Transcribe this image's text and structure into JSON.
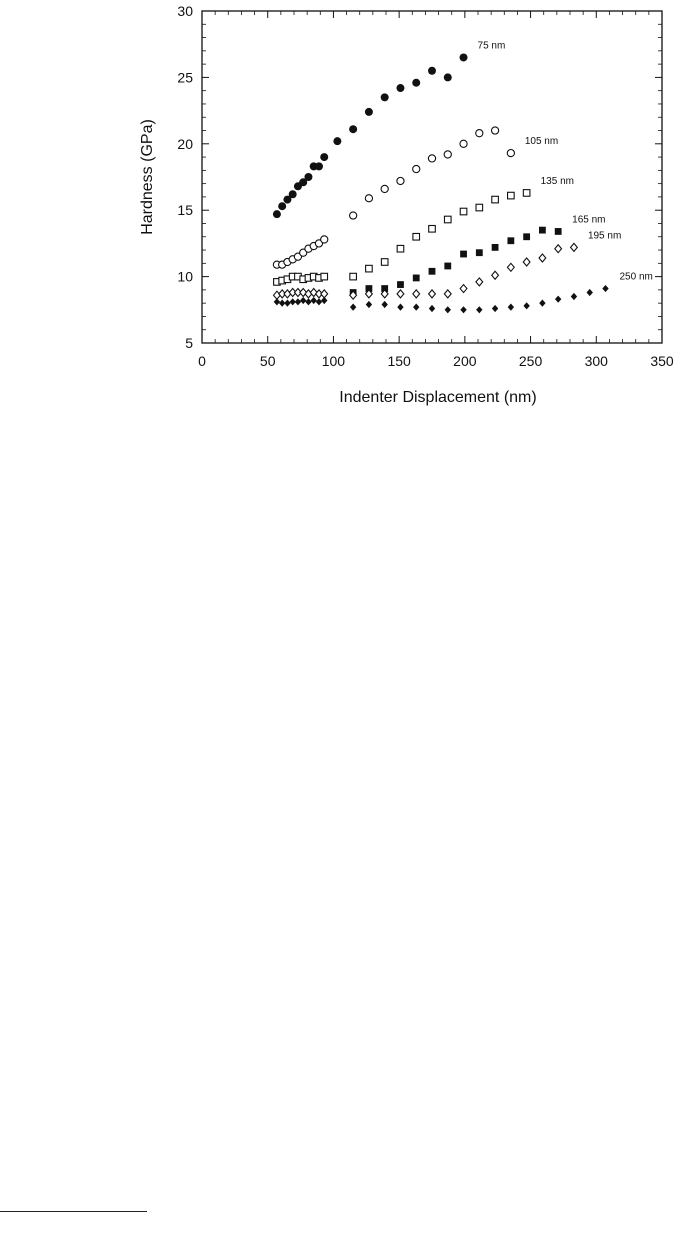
{
  "chart_data": {
    "type": "scatter",
    "title": "",
    "xlabel": "Indenter Displacement (nm)",
    "ylabel": "Hardness (GPa)",
    "xlim": [
      0,
      350
    ],
    "ylim": [
      5,
      30
    ],
    "x_ticks": [
      "0",
      "50",
      "100",
      "150",
      "200",
      "250",
      "300",
      "350"
    ],
    "y_ticks": [
      "5",
      "10",
      "15",
      "20",
      "25",
      "30"
    ],
    "grid": false,
    "legend": "inline labels at right end of each series",
    "series": [
      {
        "name": "75 nm",
        "marker": "filled-circle",
        "points": [
          [
            57,
            14.7
          ],
          [
            61,
            15.3
          ],
          [
            65,
            15.8
          ],
          [
            69,
            16.2
          ],
          [
            73,
            16.8
          ],
          [
            77,
            17.1
          ],
          [
            81,
            17.5
          ],
          [
            85,
            18.3
          ],
          [
            89,
            18.3
          ],
          [
            93,
            19.0
          ],
          [
            103,
            20.2
          ],
          [
            115,
            21.1
          ],
          [
            127,
            22.4
          ],
          [
            139,
            23.5
          ],
          [
            151,
            24.2
          ],
          [
            163,
            24.6
          ],
          [
            175,
            25.5
          ],
          [
            187,
            25.0
          ],
          [
            199,
            26.5
          ]
        ]
      },
      {
        "name": "105 nm",
        "marker": "open-circle",
        "points": [
          [
            57,
            10.9
          ],
          [
            61,
            10.9
          ],
          [
            65,
            11.1
          ],
          [
            69,
            11.3
          ],
          [
            73,
            11.5
          ],
          [
            77,
            11.8
          ],
          [
            81,
            12.1
          ],
          [
            85,
            12.3
          ],
          [
            89,
            12.5
          ],
          [
            93,
            12.8
          ],
          [
            115,
            14.6
          ],
          [
            127,
            15.9
          ],
          [
            139,
            16.6
          ],
          [
            151,
            17.2
          ],
          [
            163,
            18.1
          ],
          [
            175,
            18.9
          ],
          [
            187,
            19.2
          ],
          [
            199,
            20.0
          ],
          [
            211,
            20.8
          ],
          [
            223,
            21.0
          ],
          [
            235,
            19.3
          ]
        ]
      },
      {
        "name": "135 nm",
        "marker": "open-square",
        "points": [
          [
            57,
            9.6
          ],
          [
            61,
            9.7
          ],
          [
            65,
            9.8
          ],
          [
            69,
            10.0
          ],
          [
            73,
            10.0
          ],
          [
            77,
            9.8
          ],
          [
            81,
            9.9
          ],
          [
            85,
            10.0
          ],
          [
            89,
            9.9
          ],
          [
            93,
            10.0
          ],
          [
            115,
            10.0
          ],
          [
            127,
            10.6
          ],
          [
            139,
            11.1
          ],
          [
            151,
            12.1
          ],
          [
            163,
            13.0
          ],
          [
            175,
            13.6
          ],
          [
            187,
            14.3
          ],
          [
            199,
            14.9
          ],
          [
            211,
            15.2
          ],
          [
            223,
            15.8
          ],
          [
            235,
            16.1
          ],
          [
            247,
            16.3
          ]
        ]
      },
      {
        "name": "165 nm",
        "marker": "filled-square",
        "points": [
          [
            115,
            8.8
          ],
          [
            127,
            9.1
          ],
          [
            139,
            9.1
          ],
          [
            151,
            9.4
          ],
          [
            163,
            9.9
          ],
          [
            175,
            10.4
          ],
          [
            187,
            10.8
          ],
          [
            199,
            11.7
          ],
          [
            211,
            11.8
          ],
          [
            223,
            12.2
          ],
          [
            235,
            12.7
          ],
          [
            247,
            13.0
          ],
          [
            259,
            13.5
          ],
          [
            271,
            13.4
          ]
        ]
      },
      {
        "name": "195 nm",
        "marker": "open-diamond",
        "points": [
          [
            57,
            8.6
          ],
          [
            61,
            8.7
          ],
          [
            65,
            8.7
          ],
          [
            69,
            8.8
          ],
          [
            73,
            8.8
          ],
          [
            77,
            8.8
          ],
          [
            81,
            8.7
          ],
          [
            85,
            8.8
          ],
          [
            89,
            8.7
          ],
          [
            93,
            8.7
          ],
          [
            115,
            8.6
          ],
          [
            127,
            8.7
          ],
          [
            139,
            8.7
          ],
          [
            151,
            8.7
          ],
          [
            163,
            8.7
          ],
          [
            175,
            8.7
          ],
          [
            187,
            8.7
          ],
          [
            199,
            9.1
          ],
          [
            211,
            9.6
          ],
          [
            223,
            10.1
          ],
          [
            235,
            10.7
          ],
          [
            247,
            11.1
          ],
          [
            259,
            11.4
          ],
          [
            271,
            12.1
          ],
          [
            283,
            12.2
          ]
        ]
      },
      {
        "name": "250 nm",
        "marker": "filled-diamond",
        "points": [
          [
            57,
            8.1
          ],
          [
            61,
            8.0
          ],
          [
            65,
            8.0
          ],
          [
            69,
            8.1
          ],
          [
            73,
            8.1
          ],
          [
            77,
            8.2
          ],
          [
            81,
            8.1
          ],
          [
            85,
            8.2
          ],
          [
            89,
            8.1
          ],
          [
            93,
            8.2
          ],
          [
            115,
            7.7
          ],
          [
            127,
            7.9
          ],
          [
            139,
            7.9
          ],
          [
            151,
            7.7
          ],
          [
            163,
            7.7
          ],
          [
            175,
            7.6
          ],
          [
            187,
            7.5
          ],
          [
            199,
            7.5
          ],
          [
            211,
            7.5
          ],
          [
            223,
            7.6
          ],
          [
            235,
            7.7
          ],
          [
            247,
            7.8
          ],
          [
            259,
            8.0
          ],
          [
            271,
            8.3
          ],
          [
            283,
            8.5
          ],
          [
            295,
            8.8
          ],
          [
            307,
            9.1
          ]
        ]
      }
    ]
  }
}
